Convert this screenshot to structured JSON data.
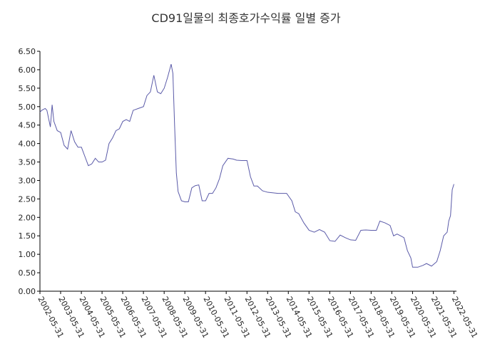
{
  "chart_data": {
    "type": "line",
    "title": "CD91일물의 최종호가수익률 일별 증가",
    "x": [
      "2002-05-31",
      "2002-07-01",
      "2002-09-01",
      "2002-10-01",
      "2002-12-01",
      "2003-01-01",
      "2003-02-01",
      "2003-04-01",
      "2003-06-01",
      "2003-08-01",
      "2003-10-01",
      "2003-12-01",
      "2004-02-01",
      "2004-04-01",
      "2004-06-01",
      "2004-08-01",
      "2004-10-01",
      "2004-12-01",
      "2005-02-01",
      "2005-04-01",
      "2005-06-01",
      "2005-08-01",
      "2005-10-01",
      "2005-12-01",
      "2006-02-01",
      "2006-04-01",
      "2006-06-01",
      "2006-08-01",
      "2006-10-01",
      "2006-12-01",
      "2007-03-01",
      "2007-06-01",
      "2007-08-01",
      "2007-10-01",
      "2007-12-01",
      "2008-02-01",
      "2008-04-01",
      "2008-06-01",
      "2008-08-01",
      "2008-10-01",
      "2008-11-01",
      "2008-12-01",
      "2009-01-01",
      "2009-02-01",
      "2009-04-01",
      "2009-06-01",
      "2009-08-01",
      "2009-10-01",
      "2009-12-01",
      "2010-02-01",
      "2010-04-01",
      "2010-06-01",
      "2010-08-01",
      "2010-10-01",
      "2010-12-01",
      "2011-02-01",
      "2011-04-01",
      "2011-07-01",
      "2011-10-01",
      "2011-12-01",
      "2012-03-01",
      "2012-06-01",
      "2012-08-01",
      "2012-10-01",
      "2012-12-01",
      "2013-03-01",
      "2013-06-01",
      "2013-12-01",
      "2014-05-01",
      "2014-08-01",
      "2014-10-01",
      "2014-12-01",
      "2015-03-01",
      "2015-06-01",
      "2015-09-01",
      "2015-12-01",
      "2016-03-01",
      "2016-06-01",
      "2016-09-01",
      "2016-12-01",
      "2017-03-01",
      "2017-06-01",
      "2017-09-01",
      "2017-12-01",
      "2018-03-01",
      "2018-06-01",
      "2018-09-01",
      "2018-11-01",
      "2019-02-01",
      "2019-05-01",
      "2019-07-01",
      "2019-09-01",
      "2019-11-01",
      "2020-01-01",
      "2020-03-01",
      "2020-05-01",
      "2020-06-01",
      "2020-09-01",
      "2020-12-01",
      "2021-02-01",
      "2021-05-01",
      "2021-08-01",
      "2021-10-01",
      "2021-12-01",
      "2022-02-01",
      "2022-03-01",
      "2022-04-01",
      "2022-05-01",
      "2022-05-31"
    ],
    "series": [
      {
        "color": "#5a5aa8",
        "values": [
          4.85,
          4.9,
          4.95,
          4.9,
          4.45,
          5.05,
          4.6,
          4.35,
          4.3,
          3.95,
          3.85,
          4.35,
          4.05,
          3.9,
          3.9,
          3.65,
          3.4,
          3.45,
          3.6,
          3.5,
          3.5,
          3.55,
          4.0,
          4.15,
          4.35,
          4.4,
          4.6,
          4.65,
          4.6,
          4.9,
          4.95,
          5.0,
          5.3,
          5.4,
          5.85,
          5.4,
          5.35,
          5.5,
          5.8,
          6.15,
          5.9,
          4.5,
          3.2,
          2.7,
          2.45,
          2.42,
          2.42,
          2.8,
          2.86,
          2.88,
          2.45,
          2.45,
          2.65,
          2.65,
          2.8,
          3.05,
          3.4,
          3.6,
          3.58,
          3.55,
          3.54,
          3.54,
          3.1,
          2.85,
          2.85,
          2.72,
          2.68,
          2.65,
          2.65,
          2.45,
          2.15,
          2.1,
          1.85,
          1.65,
          1.6,
          1.67,
          1.6,
          1.37,
          1.35,
          1.52,
          1.45,
          1.39,
          1.38,
          1.65,
          1.66,
          1.65,
          1.65,
          1.9,
          1.85,
          1.78,
          1.5,
          1.55,
          1.5,
          1.45,
          1.1,
          0.9,
          0.65,
          0.65,
          0.7,
          0.75,
          0.68,
          0.8,
          1.1,
          1.5,
          1.6,
          1.9,
          2.05,
          2.75,
          2.9
        ]
      }
    ],
    "xlim": [
      "2002-05-31",
      "2022-07-15"
    ],
    "xticks": [
      "2002-05-31",
      "2003-05-31",
      "2004-05-31",
      "2005-05-31",
      "2006-05-31",
      "2007-05-31",
      "2008-05-31",
      "2009-05-31",
      "2010-05-31",
      "2011-05-31",
      "2012-05-31",
      "2013-05-31",
      "2014-05-31",
      "2015-05-31",
      "2016-05-31",
      "2017-05-31",
      "2018-05-31",
      "2019-05-31",
      "2020-05-31",
      "2021-05-31",
      "2022-05-31"
    ],
    "ylim": [
      0,
      6.5
    ],
    "yticks": [
      {
        "value": 0,
        "label": "0.00"
      },
      {
        "value": 0.5,
        "label": "0.50"
      },
      {
        "value": 1,
        "label": "1.00"
      },
      {
        "value": 1.5,
        "label": "1.50"
      },
      {
        "value": 2,
        "label": "2.00"
      },
      {
        "value": 2.5,
        "label": "2.50"
      },
      {
        "value": 3,
        "label": "3.00"
      },
      {
        "value": 3.5,
        "label": "3.50"
      },
      {
        "value": 4,
        "label": "4.00"
      },
      {
        "value": 4.5,
        "label": "4.50"
      },
      {
        "value": 5,
        "label": "5.00"
      },
      {
        "value": 5.5,
        "label": "5.50"
      },
      {
        "value": 6,
        "label": "6.00"
      },
      {
        "value": 6.5,
        "label": "6.50"
      }
    ],
    "grid": false
  }
}
